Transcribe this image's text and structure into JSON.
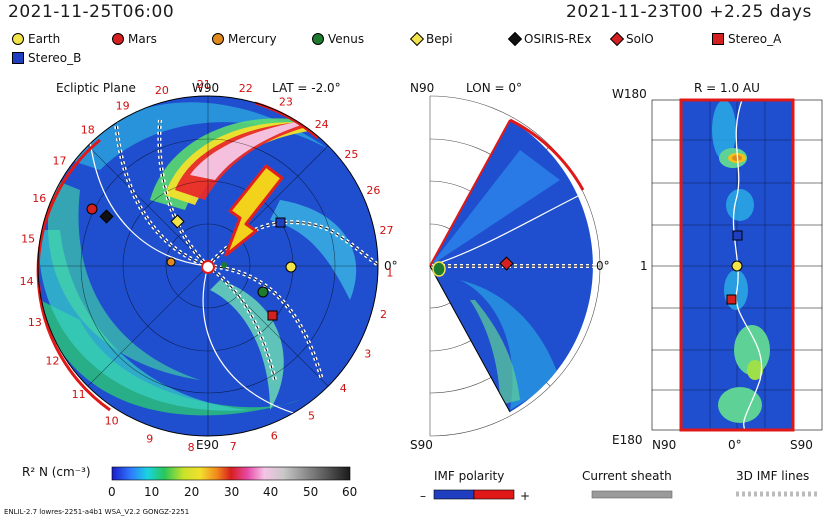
{
  "header": {
    "datetime_left": "2021-11-25T06:00",
    "datetime_right": "2021-11-23T00 +2.25 days"
  },
  "legend": [
    {
      "label": "Earth",
      "shape": "circle",
      "color": "#f2e34a"
    },
    {
      "label": "Mars",
      "shape": "circle",
      "color": "#d42020"
    },
    {
      "label": "Mercury",
      "shape": "circle",
      "color": "#e08a1e"
    },
    {
      "label": "Venus",
      "shape": "circle",
      "color": "#1d7a2e"
    },
    {
      "label": "Bepi",
      "shape": "diamond",
      "color": "#f2e34a"
    },
    {
      "label": "OSIRIS-REx",
      "shape": "diamond",
      "color": "#111111"
    },
    {
      "label": "SolO",
      "shape": "diamond",
      "color": "#d42020"
    },
    {
      "label": "Stereo_A",
      "shape": "square",
      "color": "#d42020"
    },
    {
      "label": "Stereo_B",
      "shape": "square",
      "color": "#1f3fc0"
    }
  ],
  "panels": {
    "ecliptic": {
      "title": "Ecliptic Plane",
      "top_label": "W90",
      "bottom_label": "E90",
      "right_label": "0°",
      "lat": "LAT = -2.0°",
      "carrington_numbers": [
        "19",
        "20",
        "21",
        "22",
        "23",
        "24",
        "25",
        "26",
        "27",
        "1",
        "2",
        "3",
        "4",
        "5",
        "6",
        "7",
        "8",
        "9",
        "10",
        "11",
        "12",
        "13",
        "14",
        "15",
        "16",
        "17",
        "18"
      ]
    },
    "meridional": {
      "lon": "LON = 0°",
      "top_label": "N90",
      "bottom_label": "S90",
      "right_label": "0°"
    },
    "map": {
      "r_label": "R = 1.0 AU",
      "top_left": "W180",
      "bottom_left": "E180",
      "left_mid": "1",
      "bottom_ticks": [
        "N90",
        "0°",
        "S90"
      ]
    }
  },
  "colorbar": {
    "label": "R² N (cm⁻³)",
    "ticks": [
      "0",
      "10",
      "20",
      "30",
      "40",
      "50",
      "60"
    ]
  },
  "imf": {
    "label": "IMF polarity",
    "minus": "–",
    "plus": "+",
    "sheath_label": "Current sheath",
    "lines_label": "3D IMF lines"
  },
  "footer": "ENLIL-2.7 lowres-2251-a4b1 WSA_V2.2 GONGZ-2251",
  "chart_data": {
    "type": "heatmap",
    "title": "Ecliptic Plane",
    "colorbar_range": [
      0,
      60
    ],
    "colorbar_unit": "R² N (cm⁻³)",
    "lat": -2.0,
    "lon": 0,
    "radius_AU": 1.0,
    "forecast_offset_days": 2.25
  }
}
